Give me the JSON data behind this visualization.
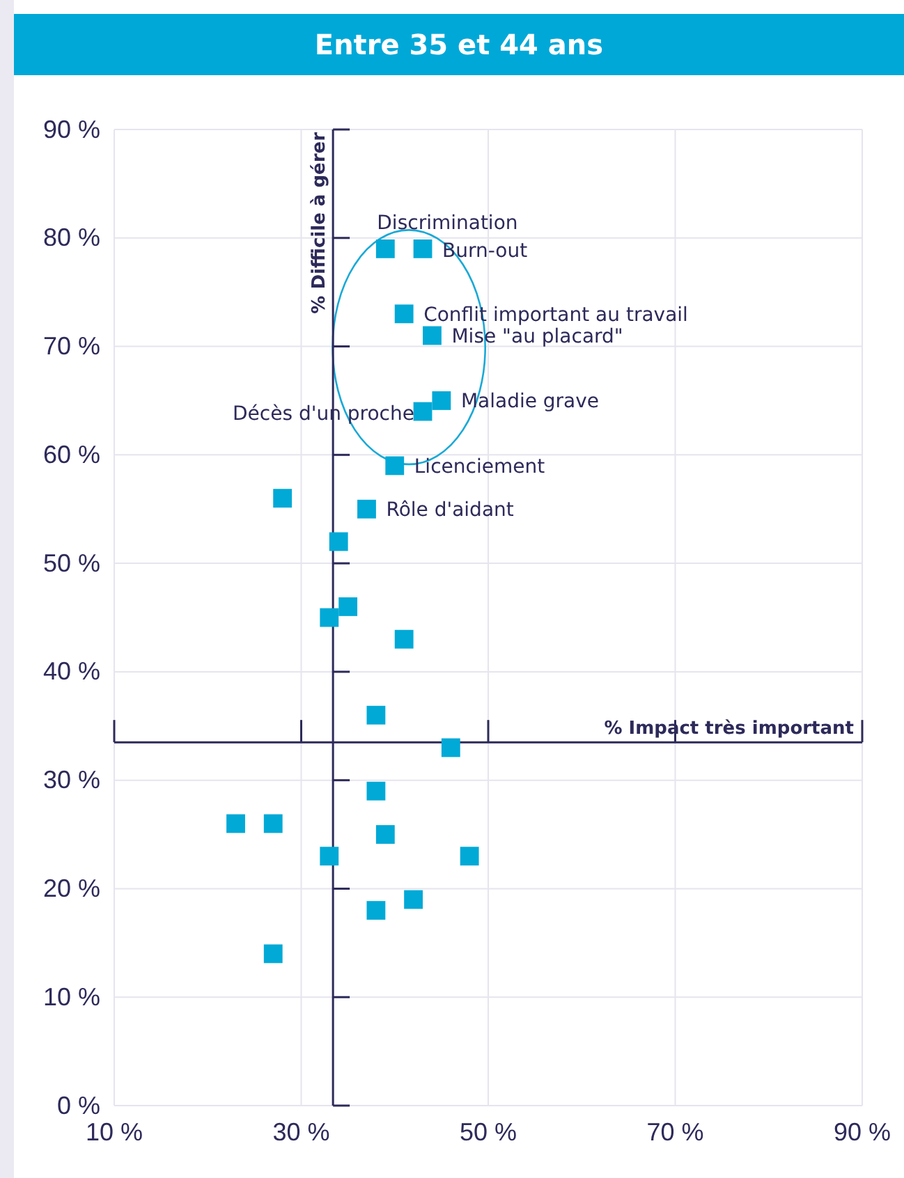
{
  "chart_data": {
    "type": "scatter",
    "title": "Entre 35 et 44 ans",
    "xlabel": "% Impact très important",
    "ylabel": "% Difficile à gérer",
    "xlim": [
      10,
      90
    ],
    "ylim": [
      0,
      90
    ],
    "xticks": [
      {
        "value": 10,
        "label": "10 %"
      },
      {
        "value": 30,
        "label": "30 %"
      },
      {
        "value": 50,
        "label": "50 %"
      },
      {
        "value": 70,
        "label": "70 %"
      },
      {
        "value": 90,
        "label": "90 %"
      }
    ],
    "yticks": [
      {
        "value": 0,
        "label": "0 %"
      },
      {
        "value": 10,
        "label": "10 %"
      },
      {
        "value": 20,
        "label": "20 %"
      },
      {
        "value": 30,
        "label": "30 %"
      },
      {
        "value": 40,
        "label": "40 %"
      },
      {
        "value": 50,
        "label": "50 %"
      },
      {
        "value": 60,
        "label": "60 %"
      },
      {
        "value": 70,
        "label": "70 %"
      },
      {
        "value": 80,
        "label": "80 %"
      },
      {
        "value": 90,
        "label": "90 %"
      }
    ],
    "grid": true,
    "marker": "square",
    "ref_lines": [
      {
        "axis": "x",
        "value": 33.4,
        "color": "#2d2a5a"
      },
      {
        "axis": "y",
        "value": 33.5,
        "color": "#2d2a5a"
      }
    ],
    "series": [
      {
        "color": "#00a9d6",
        "x": [
          39,
          43,
          41,
          44,
          45,
          43,
          40,
          37,
          28,
          34,
          35,
          33,
          41,
          38,
          46,
          38,
          23,
          27,
          39,
          33,
          48,
          42,
          38,
          27
        ],
        "values": [
          79,
          79,
          73,
          71,
          65,
          64,
          59,
          55,
          56,
          52,
          46,
          45,
          43,
          36,
          33,
          29,
          26,
          26,
          25,
          23,
          23,
          19,
          18,
          14
        ]
      }
    ],
    "annotations": [
      {
        "text": "Discrimination",
        "x": 39,
        "y": 79
      },
      {
        "text": "Burn-out",
        "x": 43,
        "y": 79
      },
      {
        "text": "Conflit important au travail",
        "x": 41,
        "y": 73
      },
      {
        "text": "Mise \"au placard\"",
        "x": 44,
        "y": 71
      },
      {
        "text": "Maladie grave",
        "x": 45,
        "y": 65
      },
      {
        "text": "Décès d'un proche",
        "x": 43,
        "y": 64
      },
      {
        "text": "Licenciement",
        "x": 40,
        "y": 59
      },
      {
        "text": "Rôle d'aidant",
        "x": 37,
        "y": 55
      }
    ]
  }
}
